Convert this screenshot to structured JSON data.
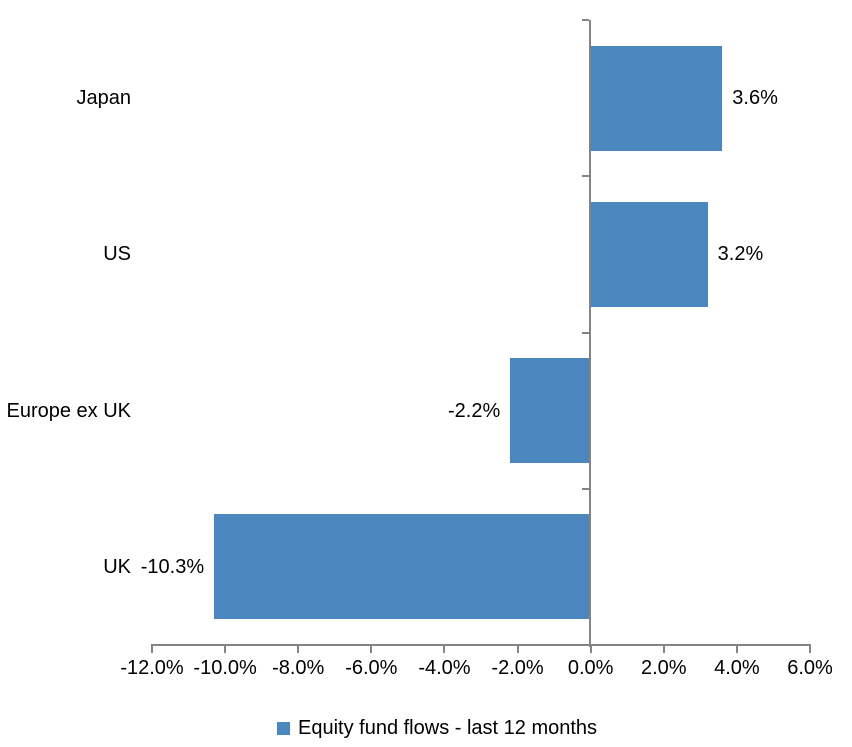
{
  "chart_data": {
    "type": "bar",
    "orientation": "horizontal",
    "title": "",
    "categories": [
      "Japan",
      "US",
      "Europe ex UK",
      "UK"
    ],
    "values": [
      3.6,
      3.2,
      -2.2,
      -10.3
    ],
    "data_labels": [
      "3.6%",
      "3.2%",
      "-2.2%",
      "-10.3%"
    ],
    "series_name": "Equity fund flows - last 12 months",
    "xlim": [
      -12,
      6
    ],
    "x_ticks": [
      -12,
      -10,
      -8,
      -6,
      -4,
      -2,
      0,
      2,
      4,
      6
    ],
    "x_tick_labels": [
      "-12.0%",
      "-10.0%",
      "-8.0%",
      "-6.0%",
      "-4.0%",
      "-2.0%",
      "0.0%",
      "2.0%",
      "4.0%",
      "6.0%"
    ],
    "grid": "off",
    "legend_position": "bottom",
    "bar_color": "#4B87BE",
    "axis_color": "#848484",
    "text_color": "#000000"
  },
  "legend": {
    "label": "Equity fund flows - last 12 months"
  }
}
